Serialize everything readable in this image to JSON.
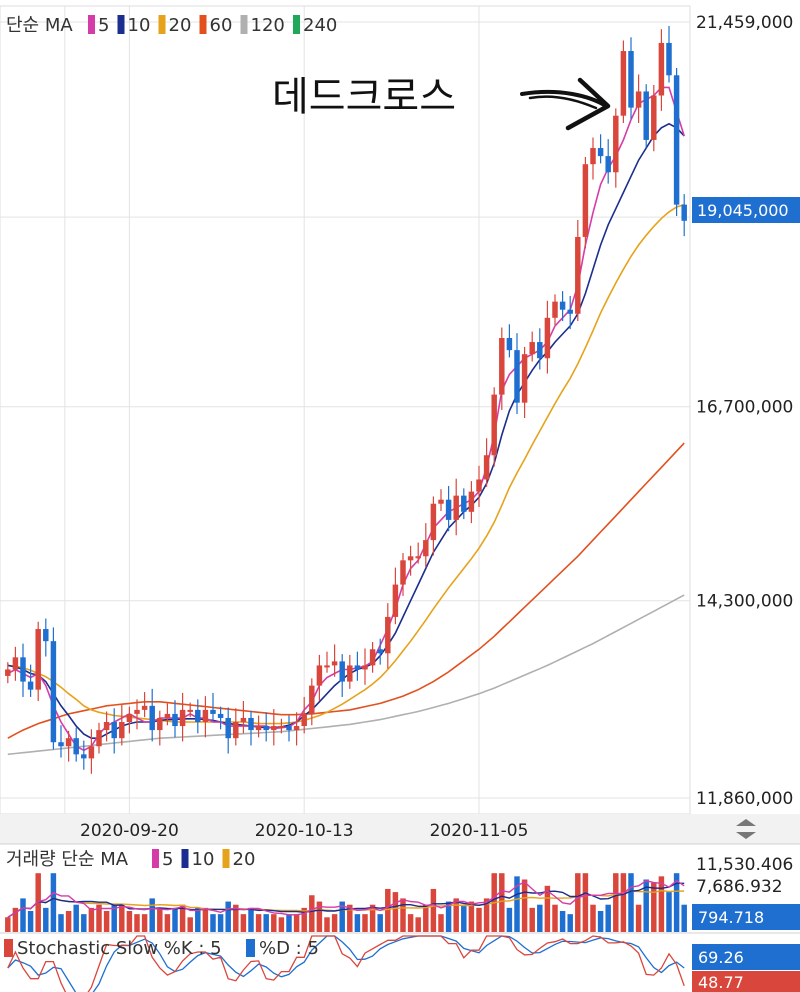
{
  "colors": {
    "up": "#d9463b",
    "down": "#1f6fd1",
    "ma5": "#d63ca8",
    "ma10": "#1b2e8f",
    "ma20": "#e6a21a",
    "ma60": "#e2501e",
    "ma120": "#b0b0b0",
    "ma240": "#21a75a",
    "grid": "#e3e3e3",
    "tag_blue": "#1f6fd1",
    "tag_red": "#d9463b"
  },
  "main_legend": {
    "prefix": "단순 MA",
    "items": [
      {
        "label": "5",
        "color": "#d63ca8"
      },
      {
        "label": "10",
        "color": "#1b2e8f"
      },
      {
        "label": "20",
        "color": "#e6a21a"
      },
      {
        "label": "60",
        "color": "#e2501e"
      },
      {
        "label": "120",
        "color": "#b0b0b0"
      },
      {
        "label": "240",
        "color": "#21a75a"
      }
    ]
  },
  "annotation": "데드크로스",
  "current_price": "19,045,000",
  "volume_legend": {
    "prefix": "거래량 단순 MA",
    "items": [
      {
        "label": "5",
        "color": "#d63ca8"
      },
      {
        "label": "10",
        "color": "#1b2e8f"
      },
      {
        "label": "20",
        "color": "#e6a21a"
      }
    ],
    "ticks": [
      "11,530.406",
      "7,686.932"
    ],
    "current": "794.718"
  },
  "stochastic": {
    "label_k": "Stochastic Slow %K : 5",
    "label_d": "%D : 5",
    "current_k": "69.26",
    "current_d": "48.77"
  },
  "chart_data": {
    "type": "candlestick",
    "yaxis_ticks": [
      "21,459,000",
      "19,045,000",
      "16,700,000",
      "14,300,000",
      "11,860,000"
    ],
    "ylim": [
      11860000,
      21459000
    ],
    "date_ticks": [
      {
        "label": "2020-09-20",
        "index": 16
      },
      {
        "label": "2020-10-13",
        "index": 39
      },
      {
        "label": "2020-11-05",
        "index": 62
      }
    ],
    "closes": [
      13450000,
      13600000,
      13300000,
      13200000,
      13950000,
      13800000,
      12550000,
      12500000,
      12600000,
      12400000,
      12350000,
      12500000,
      12700000,
      12800000,
      12600000,
      12800000,
      12900000,
      12950000,
      13000000,
      12700000,
      12850000,
      12900000,
      12750000,
      12950000,
      12950000,
      12800000,
      12950000,
      12900000,
      12850000,
      12600000,
      12800000,
      12850000,
      12700000,
      12750000,
      12700000,
      12750000,
      12750000,
      12700000,
      12750000,
      12900000,
      13250000,
      13500000,
      13500000,
      13550000,
      13300000,
      13500000,
      13450000,
      13500000,
      13700000,
      13650000,
      14100000,
      14500000,
      14800000,
      14850000,
      14850000,
      15050000,
      15500000,
      15550000,
      15300000,
      15600000,
      15400000,
      15650000,
      15800000,
      16100000,
      16850000,
      17550000,
      17400000,
      16750000,
      17350000,
      17500000,
      17300000,
      17800000,
      18000000,
      17900000,
      17850000,
      18800000,
      19700000,
      19900000,
      19800000,
      19600000,
      20300000,
      21100000,
      20400000,
      20600000,
      20000000,
      20550000,
      21200000,
      20800000,
      19200000,
      19000000
    ],
    "ma5": [
      13400000,
      13450000,
      13400000,
      13350000,
      13400000,
      13250000,
      13000000,
      12800000,
      12650000,
      12500000,
      12450000,
      12500000,
      12650000,
      12750000,
      12800000,
      12850000,
      12900000,
      12850000,
      12800000,
      12800000,
      12850000,
      12850000,
      12850000,
      12850000,
      12900000,
      12850000,
      12850000,
      12800000,
      12800000,
      12750000,
      12750000,
      12750000,
      12750000,
      12750000,
      12750000,
      12720000,
      12730000,
      12740000,
      12800000,
      12950000,
      13050000,
      13250000,
      13350000,
      13400000,
      13450000,
      13450000,
      13470000,
      13490000,
      13550000,
      13750000,
      13950000,
      14200000,
      14500000,
      14700000,
      14800000,
      15000000,
      15200000,
      15300000,
      15400000,
      15450000,
      15500000,
      15550000,
      15650000,
      15950000,
      16350000,
      16900000,
      17100000,
      17200000,
      17300000,
      17350000,
      17400000,
      17500000,
      17700000,
      17800000,
      17900000,
      18200000,
      18700000,
      19100000,
      19450000,
      19650000,
      19800000,
      20000000,
      20250000,
      20450000,
      20500000,
      20550000,
      20650000,
      20650000,
      20350000,
      20050000
    ],
    "ma10": [
      13500000,
      13480000,
      13450000,
      13400000,
      13380000,
      13300000,
      13150000,
      13000000,
      12880000,
      12750000,
      12650000,
      12600000,
      12600000,
      12650000,
      12700000,
      12750000,
      12780000,
      12800000,
      12800000,
      12800000,
      12820000,
      12830000,
      12830000,
      12840000,
      12840000,
      12840000,
      12830000,
      12820000,
      12800000,
      12780000,
      12770000,
      12760000,
      12750000,
      12740000,
      12730000,
      12730000,
      12740000,
      12760000,
      12800000,
      12880000,
      12950000,
      13050000,
      13150000,
      13250000,
      13330000,
      13400000,
      13450000,
      13480000,
      13520000,
      13620000,
      13750000,
      13900000,
      14100000,
      14300000,
      14500000,
      14700000,
      14900000,
      15050000,
      15200000,
      15300000,
      15400000,
      15480000,
      15580000,
      15750000,
      16000000,
      16350000,
      16650000,
      16850000,
      17000000,
      17150000,
      17280000,
      17380000,
      17500000,
      17600000,
      17700000,
      17850000,
      18100000,
      18400000,
      18700000,
      18950000,
      19150000,
      19350000,
      19550000,
      19750000,
      19900000,
      20050000,
      20150000,
      20200000,
      20150000,
      20050000
    ],
    "ma20": [
      13500000,
      13490000,
      13470000,
      13440000,
      13400000,
      13360000,
      13300000,
      13230000,
      13150000,
      13080000,
      13000000,
      12950000,
      12920000,
      12900000,
      12880000,
      12870000,
      12860000,
      12850000,
      12840000,
      12830000,
      12820000,
      12810000,
      12800000,
      12800000,
      12800000,
      12800000,
      12800000,
      12800000,
      12800000,
      12800000,
      12800000,
      12800000,
      12790000,
      12780000,
      12780000,
      12780000,
      12780000,
      12790000,
      12800000,
      12820000,
      12850000,
      12880000,
      12920000,
      12970000,
      13020000,
      13080000,
      13140000,
      13200000,
      13270000,
      13350000,
      13450000,
      13560000,
      13680000,
      13800000,
      13930000,
      14060000,
      14200000,
      14330000,
      14460000,
      14580000,
      14700000,
      14820000,
      14950000,
      15100000,
      15270000,
      15480000,
      15700000,
      15880000,
      16050000,
      16230000,
      16400000,
      16570000,
      16740000,
      16900000,
      17050000,
      17230000,
      17430000,
      17640000,
      17860000,
      18050000,
      18230000,
      18400000,
      18560000,
      18700000,
      18820000,
      18930000,
      19030000,
      19110000,
      19170000,
      19200000
    ],
    "ma60": [
      12600000,
      12650000,
      12700000,
      12740000,
      12780000,
      12810000,
      12840000,
      12870000,
      12900000,
      12920000,
      12940000,
      12960000,
      12980000,
      13000000,
      13010000,
      13020000,
      13030000,
      13040000,
      13050000,
      13050000,
      13050000,
      13040000,
      13030000,
      13020000,
      13010000,
      13000000,
      12990000,
      12980000,
      12970000,
      12960000,
      12950000,
      12940000,
      12930000,
      12920000,
      12910000,
      12900000,
      12890000,
      12890000,
      12890000,
      12900000,
      12900000,
      12910000,
      12920000,
      12930000,
      12940000,
      12950000,
      12970000,
      12990000,
      13010000,
      13030000,
      13060000,
      13090000,
      13120000,
      13160000,
      13200000,
      13250000,
      13300000,
      13360000,
      13420000,
      13490000,
      13560000,
      13630000,
      13700000,
      13780000,
      13860000,
      13950000,
      14040000,
      14130000,
      14220000,
      14310000,
      14400000,
      14490000,
      14580000,
      14670000,
      14760000,
      14850000,
      14950000,
      15050000,
      15150000,
      15250000,
      15350000,
      15450000,
      15550000,
      15650000,
      15750000,
      15850000,
      15950000,
      16050000,
      16150000,
      16250000
    ],
    "ma120": [
      12400000,
      12410000,
      12420000,
      12430000,
      12440000,
      12450000,
      12460000,
      12470000,
      12480000,
      12490000,
      12500000,
      12510000,
      12520000,
      12530000,
      12540000,
      12550000,
      12560000,
      12570000,
      12580000,
      12590000,
      12600000,
      12605000,
      12610000,
      12615000,
      12620000,
      12625000,
      12630000,
      12635000,
      12640000,
      12645000,
      12650000,
      12655000,
      12660000,
      12665000,
      12670000,
      12675000,
      12680000,
      12690000,
      12700000,
      12710000,
      12720000,
      12730000,
      12740000,
      12750000,
      12760000,
      12770000,
      12785000,
      12800000,
      12815000,
      12830000,
      12850000,
      12870000,
      12890000,
      12910000,
      12930000,
      12955000,
      12980000,
      13005000,
      13030000,
      13060000,
      13090000,
      13120000,
      13150000,
      13185000,
      13220000,
      13260000,
      13300000,
      13340000,
      13380000,
      13420000,
      13460000,
      13500000,
      13545000,
      13590000,
      13635000,
      13680000,
      13725000,
      13770000,
      13820000,
      13870000,
      13920000,
      13970000,
      14020000,
      14070000,
      14120000,
      14170000,
      14220000,
      14270000,
      14320000,
      14370000
    ]
  }
}
